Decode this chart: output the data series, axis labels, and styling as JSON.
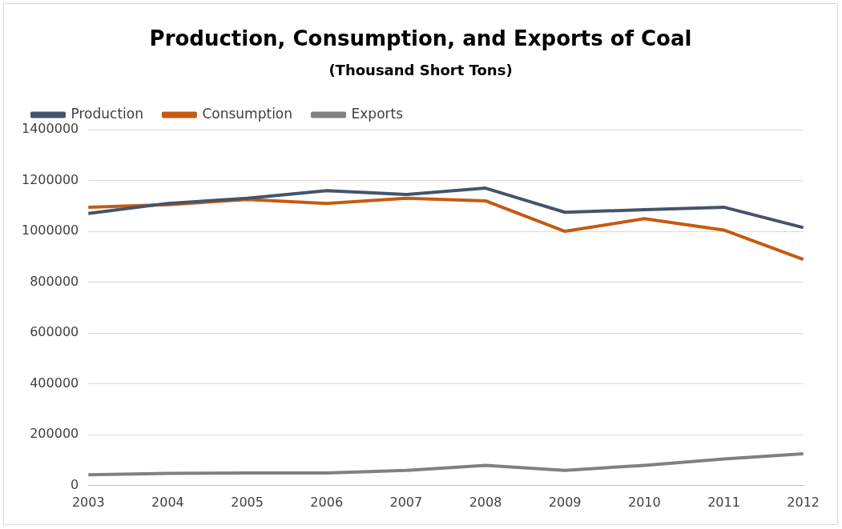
{
  "chart_data": {
    "type": "line",
    "title": "Production, Consumption, and Exports of Coal",
    "subtitle": "(Thousand Short Tons)",
    "categories": [
      "2003",
      "2004",
      "2005",
      "2006",
      "2007",
      "2008",
      "2009",
      "2010",
      "2011",
      "2012"
    ],
    "series": [
      {
        "name": "Production",
        "color": "#44546a",
        "values": [
          1070000,
          1110000,
          1130000,
          1160000,
          1145000,
          1170000,
          1075000,
          1085000,
          1095000,
          1015000
        ]
      },
      {
        "name": "Consumption",
        "color": "#c55a11",
        "values": [
          1095000,
          1105000,
          1125000,
          1110000,
          1130000,
          1120000,
          1000000,
          1050000,
          1005000,
          890000
        ]
      },
      {
        "name": "Exports",
        "color": "#808080",
        "values": [
          43000,
          48000,
          50000,
          50000,
          60000,
          80000,
          60000,
          80000,
          105000,
          125000
        ]
      }
    ],
    "ylim": [
      0,
      1400000
    ],
    "yticks": [
      0,
      200000,
      400000,
      600000,
      800000,
      1000000,
      1200000,
      1400000
    ],
    "grid": "y",
    "legend": "top left",
    "marker": "none",
    "line_style": "solid"
  }
}
